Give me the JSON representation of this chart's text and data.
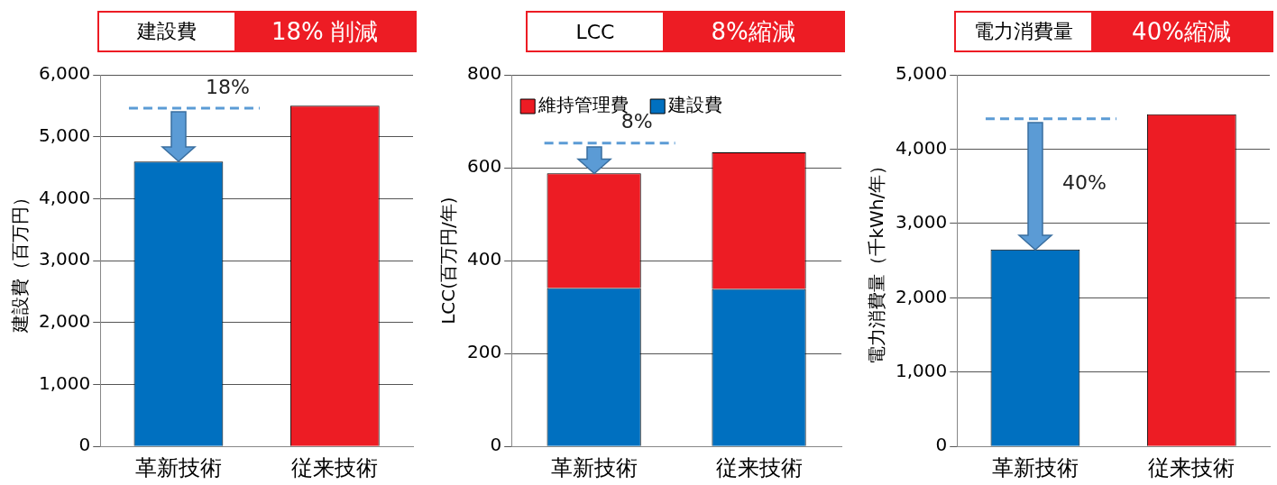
{
  "chart_data": [
    {
      "type": "bar",
      "title": "建設費",
      "subtitle": "18% 削減",
      "ylabel": "建設費（百万円）",
      "categories": [
        "革新技術",
        "従来技術"
      ],
      "values": [
        4600,
        5500
      ],
      "colors": [
        "#0070c0",
        "#ed1c24"
      ],
      "ylim": [
        0,
        6000
      ],
      "yticks": [
        0,
        {
          "value": 1000,
          "label": "1,000"
        },
        {
          "value": 2000,
          "label": "2,000"
        },
        {
          "value": 3000,
          "label": "3,000"
        },
        {
          "value": 4000,
          "label": "4,000"
        },
        {
          "value": 5000,
          "label": "5,000"
        },
        {
          "value": 6000,
          "label": "6,000"
        }
      ],
      "grid": "y",
      "ref_lines": [
        {
          "axis": "y",
          "value": 5460,
          "color": "#5b9bd5",
          "line_style": "dashed"
        }
      ],
      "annotations": [
        "18%"
      ]
    },
    {
      "type": "bar",
      "title": "LCC",
      "subtitle": "8%縮減",
      "ylabel": "LCC(百万円/年)",
      "categories": [
        "革新技術",
        "従来技術"
      ],
      "stacked": true,
      "series": [
        {
          "name": "建設費",
          "color": "#0070c0",
          "values": [
            341,
            339
          ]
        },
        {
          "name": "維持管理費",
          "color": "#ed1c24",
          "values": [
            247,
            294
          ]
        }
      ],
      "ylim": [
        0,
        800
      ],
      "yticks": [
        0,
        200,
        400,
        600,
        800
      ],
      "grid": "y",
      "legend": "top left",
      "ref_lines": [
        {
          "axis": "y",
          "value": 653,
          "color": "#5b9bd5",
          "line_style": "dashed"
        }
      ],
      "annotations": [
        "8%"
      ]
    },
    {
      "type": "bar",
      "title": "電力消費量",
      "subtitle": "40%縮減",
      "ylabel": "電力消費量（千kWh/年）",
      "categories": [
        "革新技術",
        "従来技術"
      ],
      "values": [
        2650,
        4470
      ],
      "colors": [
        "#0070c0",
        "#ed1c24"
      ],
      "ylim": [
        0,
        5000
      ],
      "yticks": [
        0,
        {
          "value": 1000,
          "label": "1,000"
        },
        {
          "value": 2000,
          "label": "2,000"
        },
        {
          "value": 3000,
          "label": "3,000"
        },
        {
          "value": 4000,
          "label": "4,000"
        },
        {
          "value": 5000,
          "label": "5,000"
        }
      ],
      "grid": "y",
      "ref_lines": [
        {
          "axis": "y",
          "value": 4410,
          "color": "#5b9bd5",
          "line_style": "dashed"
        }
      ],
      "annotations": [
        "40%"
      ]
    }
  ]
}
